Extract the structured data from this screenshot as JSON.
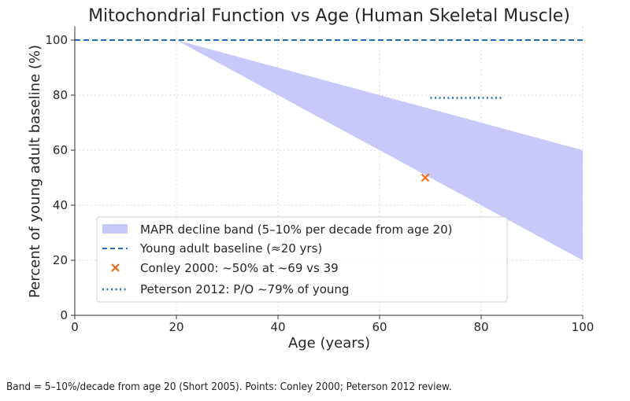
{
  "chart_data": {
    "type": "line",
    "title": "Mitochondrial Function vs Age (Human Skeletal Muscle)",
    "xlabel": "Age (years)",
    "ylabel": "Percent of young adult baseline (%)",
    "xlim": [
      0,
      100
    ],
    "ylim": [
      0,
      105
    ],
    "xticks": [
      0,
      20,
      40,
      60,
      80,
      100
    ],
    "yticks": [
      0,
      20,
      40,
      60,
      80,
      100
    ],
    "grid": true,
    "legend_placement": "lower-left",
    "band": {
      "name": "MAPR decline band (5–10% per decade from age 20)",
      "x": [
        20,
        100
      ],
      "upper": [
        100,
        60
      ],
      "lower": [
        100,
        20
      ],
      "color": "#c8c8fa"
    },
    "series": [
      {
        "name": "Young adult baseline (≈20 yrs)",
        "style": "dashed",
        "color": "#1f6fb2",
        "x": [
          0,
          100
        ],
        "y": [
          100,
          100
        ]
      },
      {
        "name": "Conley 2000: ~50% at ~69 vs 39",
        "style": "marker-x",
        "color": "#f26b1d",
        "x": [
          69
        ],
        "y": [
          50
        ]
      },
      {
        "name": "Peterson 2012: P/O ~79% of young",
        "style": "dotted",
        "color": "#1f6fb2",
        "x": [
          70,
          84
        ],
        "y": [
          79,
          79
        ]
      }
    ]
  },
  "footer": "Band = 5–10%/decade from age 20 (Short 2005). Points: Conley 2000; Peterson 2012 review."
}
